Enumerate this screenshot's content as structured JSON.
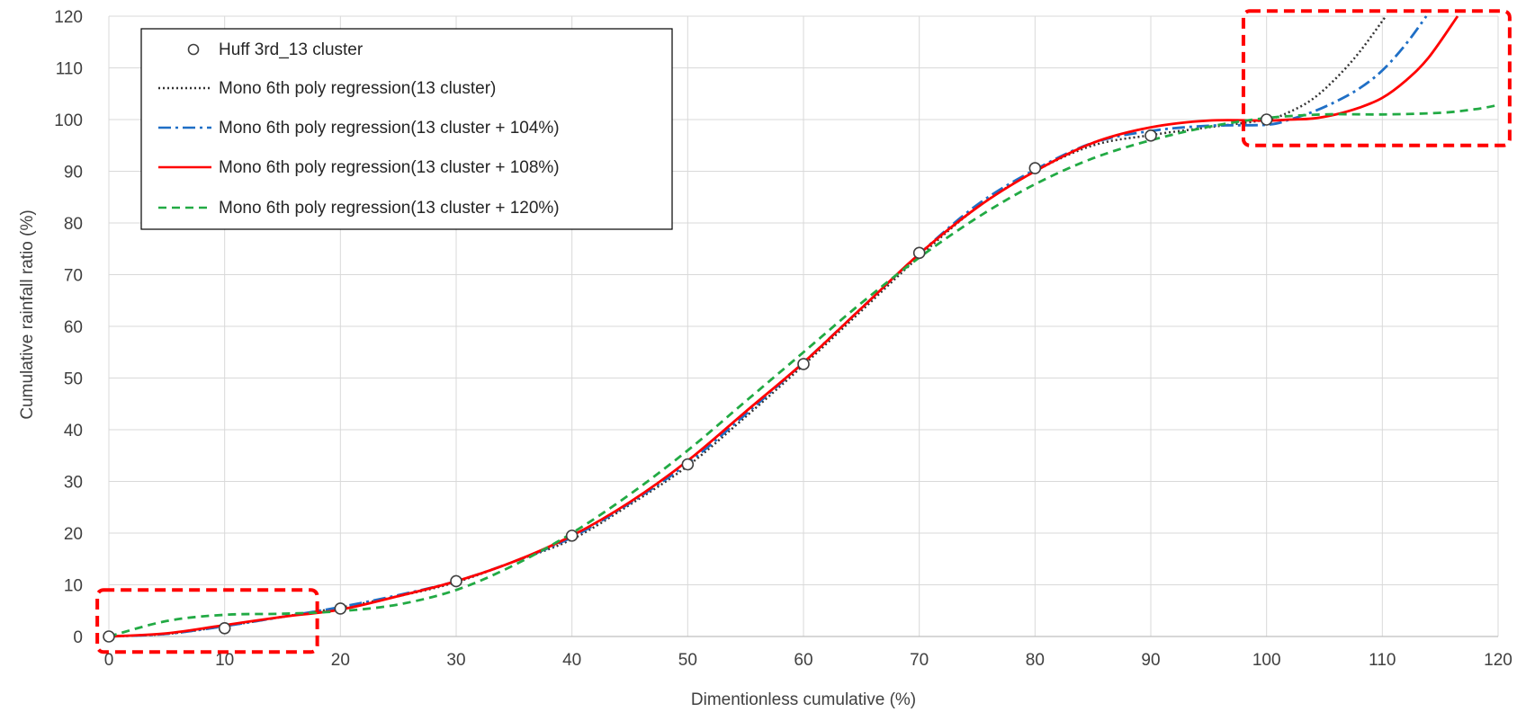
{
  "chart_data": {
    "type": "line",
    "title": "",
    "xlabel": "Dimentionless cumulative (%)",
    "ylabel": "Cumulative rainfall ratio (%)",
    "xlim": [
      0,
      120
    ],
    "ylim": [
      0,
      120
    ],
    "xticks": [
      "0",
      "10",
      "20",
      "30",
      "40",
      "50",
      "60",
      "70",
      "80",
      "90",
      "100",
      "110",
      "120"
    ],
    "yticks": [
      "0",
      "10",
      "20",
      "30",
      "40",
      "50",
      "60",
      "70",
      "80",
      "90",
      "100",
      "110",
      "120"
    ],
    "grid": true,
    "legend_position": "top-left",
    "highlight_boxes": [
      {
        "x": [
          -1,
          18
        ],
        "y": [
          -3,
          9
        ]
      },
      {
        "x": [
          98,
          121
        ],
        "y": [
          95,
          121
        ]
      }
    ],
    "series": [
      {
        "name": "Huff 3rd_13 cluster",
        "style": "markers",
        "color": "#404040",
        "x": [
          0,
          10,
          20,
          30,
          40,
          50,
          60,
          70,
          80,
          90,
          100
        ],
        "y": [
          0,
          1.6,
          5.4,
          10.7,
          19.5,
          33.3,
          52.7,
          74.2,
          90.6,
          96.9,
          100
        ]
      },
      {
        "name": "Mono 6th poly regression(13 cluster)",
        "style": "dotted",
        "color": "#333333",
        "x": [
          0,
          5,
          10,
          15,
          20,
          25,
          30,
          35,
          40,
          45,
          50,
          55,
          60,
          65,
          70,
          75,
          80,
          85,
          90,
          95,
          100,
          102,
          104,
          106,
          108,
          110.3
        ],
        "y": [
          0,
          0.5,
          2.0,
          3.8,
          5.6,
          7.8,
          10.5,
          14.5,
          18.8,
          25.5,
          33.0,
          42.5,
          52.5,
          63.0,
          73.5,
          83.0,
          90.0,
          95.0,
          97.0,
          98.5,
          100,
          101.5,
          104.0,
          108.0,
          113.0,
          120
        ]
      },
      {
        "name": "Mono 6th poly regression(13 cluster + 104%)",
        "style": "dashdot",
        "color": "#1f6fc6",
        "x": [
          0,
          5,
          10,
          15,
          20,
          25,
          30,
          35,
          40,
          45,
          50,
          55,
          60,
          65,
          70,
          75,
          80,
          85,
          90,
          95,
          100,
          102,
          104,
          106,
          108,
          110,
          112,
          113.8
        ],
        "y": [
          0,
          0.5,
          2.0,
          3.8,
          5.7,
          8.0,
          10.7,
          14.5,
          19.2,
          25.8,
          33.5,
          43.0,
          53.0,
          63.5,
          74.0,
          83.5,
          90.3,
          95.5,
          97.8,
          98.8,
          99.0,
          100.0,
          101.5,
          103.5,
          106.0,
          109.5,
          114.5,
          120
        ]
      },
      {
        "name": "Mono 6th poly regression(13 cluster + 108%)",
        "style": "solid",
        "color": "#ff0000",
        "x": [
          0,
          5,
          10,
          15,
          20,
          25,
          30,
          35,
          40,
          45,
          50,
          55,
          60,
          65,
          70,
          75,
          80,
          85,
          90,
          95,
          100,
          102,
          104,
          106,
          108,
          110,
          112,
          114,
          116.5
        ],
        "y": [
          0,
          0.6,
          2.2,
          3.8,
          5.2,
          7.8,
          10.7,
          14.5,
          19.5,
          26.0,
          34.0,
          43.5,
          53.0,
          63.5,
          74.0,
          83.0,
          90.0,
          95.5,
          98.5,
          99.8,
          99.8,
          100.0,
          100.2,
          101.0,
          102.3,
          104.2,
          107.5,
          112.0,
          120
        ]
      },
      {
        "name": "Mono 6th poly regression(13 cluster + 120%)",
        "style": "dashed",
        "color": "#22aa44",
        "x": [
          0,
          5,
          10,
          15,
          20,
          25,
          30,
          35,
          40,
          45,
          50,
          55,
          60,
          65,
          70,
          75,
          80,
          85,
          90,
          95,
          100,
          105,
          110,
          115,
          118,
          120
        ],
        "y": [
          0,
          3.0,
          4.2,
          4.4,
          4.9,
          6.2,
          9.0,
          13.8,
          20.0,
          27.5,
          36.0,
          45.5,
          55.0,
          64.5,
          73.3,
          81.0,
          87.5,
          92.5,
          96.0,
          98.6,
          100.3,
          101.0,
          101.0,
          101.3,
          102.0,
          102.8
        ]
      }
    ]
  }
}
